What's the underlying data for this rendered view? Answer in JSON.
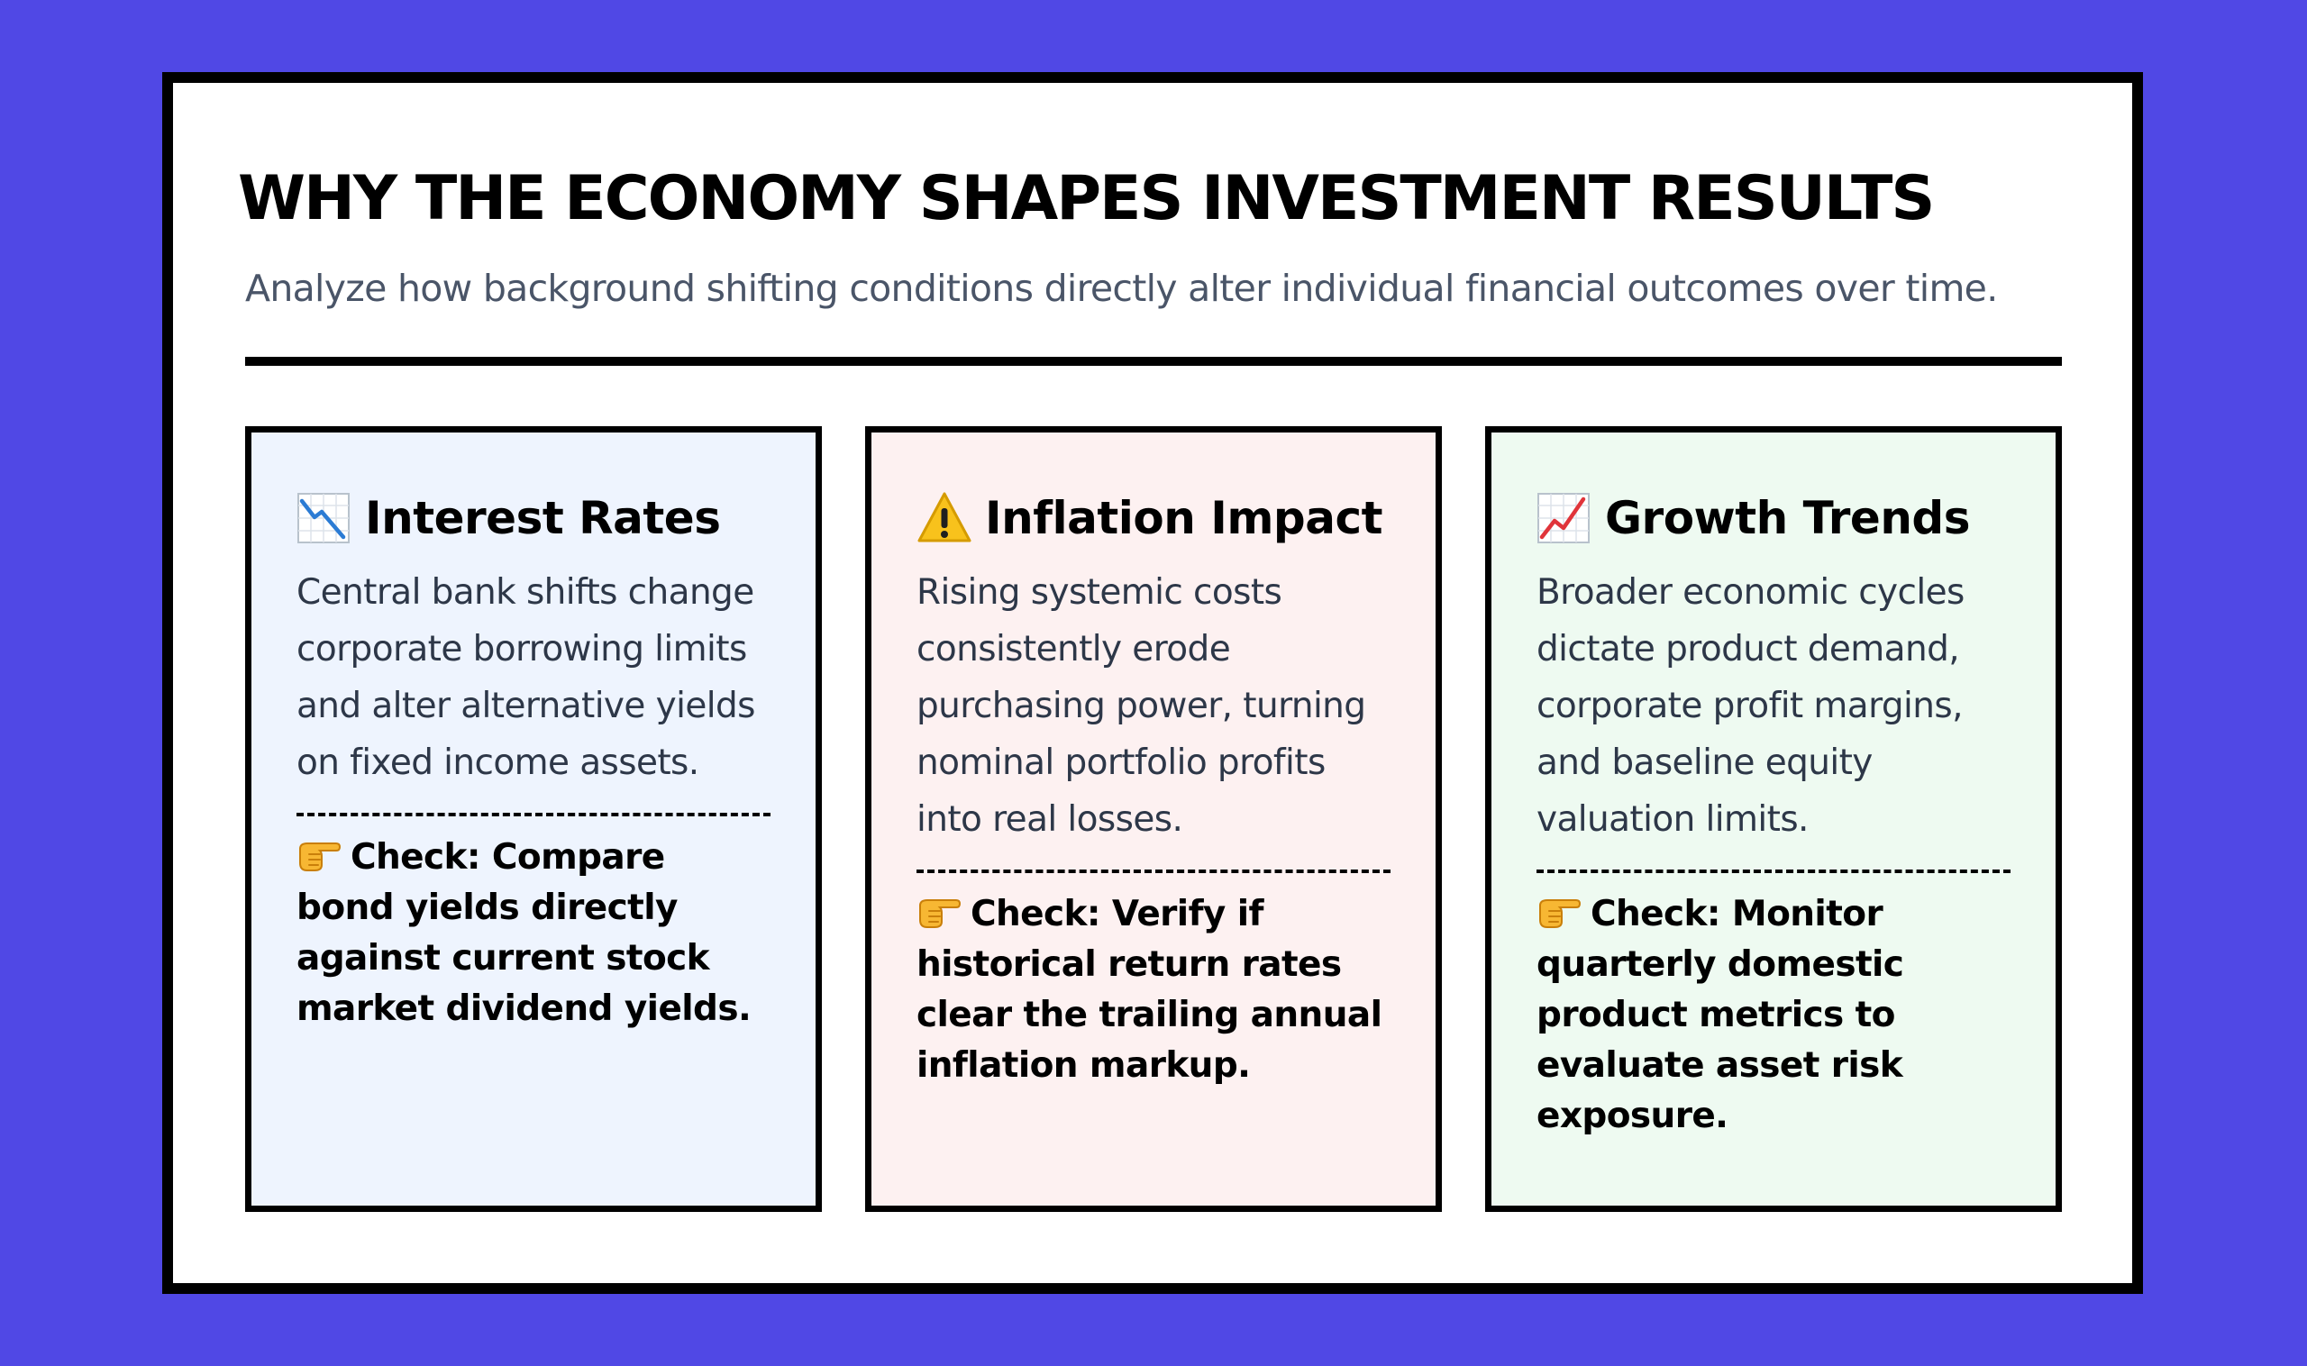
{
  "header": {
    "title": "WHY THE ECONOMY SHAPES INVESTMENT RESULTS",
    "subtitle": "Analyze how background shifting conditions directly alter individual financial outcomes over time."
  },
  "cards": [
    {
      "icon": "chart-decreasing-icon",
      "title": "Interest Rates",
      "body": "Central bank shifts change corporate borrowing limits and alter alternative yields on fixed income assets.",
      "check_icon": "pointing-hand-icon",
      "check": "Check: Compare bond yields directly against current stock market dividend yields.",
      "background": "#eef4fe"
    },
    {
      "icon": "warning-icon",
      "title": "Inflation Impact",
      "body": "Rising systemic costs consistently erode purchasing power, turning nominal portfolio profits into real losses.",
      "check_icon": "pointing-hand-icon",
      "check": "Check: Verify if historical return rates clear the trailing annual inflation markup.",
      "background": "#fdf1f1"
    },
    {
      "icon": "chart-increasing-icon",
      "title": "Growth Trends",
      "body": "Broader economic cycles dictate product demand, corporate profit margins, and baseline equity valuation limits.",
      "check_icon": "pointing-hand-icon",
      "check": "Check: Monitor quarterly domestic product metrics to evaluate asset risk exposure.",
      "background": "#eefaf1"
    }
  ],
  "colors": {
    "page_background": "#5048e5",
    "frame_border": "#000000",
    "subtitle_text": "#4a5568"
  }
}
